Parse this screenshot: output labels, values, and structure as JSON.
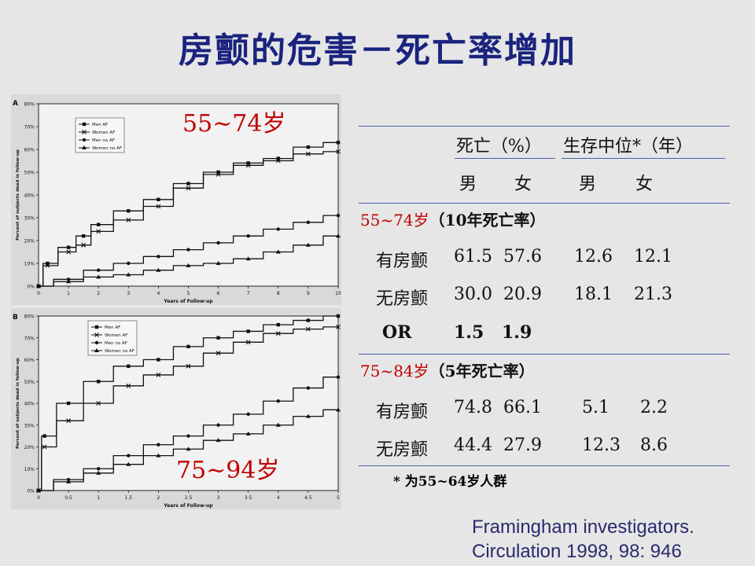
{
  "title": "房颤的危害－死亡率增加",
  "chart_data": [
    {
      "type": "line",
      "panel_label": "A",
      "age_label": "55~74岁",
      "xlabel": "Years of Follow-up",
      "ylabel": "Percent of subjects dead in follow-up",
      "xlim": [
        0,
        10
      ],
      "ylim": [
        0,
        80
      ],
      "x_ticks": [
        "0",
        "1",
        "2",
        "3",
        "4",
        "5",
        "6",
        "7",
        "8",
        "9",
        "10"
      ],
      "y_ticks": [
        "0%",
        "10%",
        "20%",
        "30%",
        "40%",
        "50%",
        "60%",
        "70%",
        "80%"
      ],
      "legend_position": "top-left",
      "series": [
        {
          "name": "Men AF",
          "marker": "square",
          "x": [
            0,
            0.3,
            1,
            1.5,
            2,
            3,
            4,
            5,
            6,
            7,
            8,
            9,
            10
          ],
          "y": [
            0,
            10,
            17,
            22,
            27,
            33,
            38,
            45,
            50,
            54,
            56,
            61,
            63
          ]
        },
        {
          "name": "Women AF",
          "marker": "x",
          "x": [
            0,
            0.3,
            1,
            1.5,
            2,
            3,
            4,
            5,
            6,
            7,
            8,
            9,
            10
          ],
          "y": [
            0,
            9,
            15,
            18,
            24,
            29,
            35,
            43,
            49,
            53,
            55,
            58,
            59
          ]
        },
        {
          "name": "Men no AF",
          "marker": "circle",
          "x": [
            0,
            1,
            2,
            3,
            4,
            5,
            6,
            7,
            8,
            9,
            10
          ],
          "y": [
            0,
            3,
            7,
            10,
            13,
            16,
            19,
            22,
            25,
            28,
            31
          ]
        },
        {
          "name": "Women no AF",
          "marker": "triangle",
          "x": [
            0,
            1,
            2,
            3,
            4,
            5,
            6,
            7,
            8,
            9,
            10
          ],
          "y": [
            0,
            2,
            4,
            5,
            7,
            9,
            10,
            12,
            15,
            18,
            22
          ]
        }
      ]
    },
    {
      "type": "line",
      "panel_label": "B",
      "age_label": "75~94岁",
      "xlabel": "Years of Follow-up",
      "ylabel": "Percent of subjects dead in follow-up",
      "xlim": [
        0,
        5
      ],
      "ylim": [
        0,
        80
      ],
      "x_ticks": [
        "0",
        "0.5",
        "1",
        "1.5",
        "2",
        "2.5",
        "3",
        "3.5",
        "4",
        "4.5",
        "5"
      ],
      "y_ticks": [
        "0%",
        "10%",
        "20%",
        "30%",
        "40%",
        "50%",
        "60%",
        "70%",
        "80%"
      ],
      "legend_position": "top-right",
      "series": [
        {
          "name": "Men AF",
          "marker": "square",
          "x": [
            0,
            0.1,
            0.5,
            1,
            1.5,
            2,
            2.5,
            3,
            3.5,
            4,
            4.5,
            5
          ],
          "y": [
            0,
            25,
            40,
            50,
            57,
            60,
            66,
            70,
            73,
            76,
            78,
            80
          ]
        },
        {
          "name": "Women AF",
          "marker": "x",
          "x": [
            0,
            0.1,
            0.5,
            1,
            1.5,
            2,
            2.5,
            3,
            3.5,
            4,
            4.5,
            5
          ],
          "y": [
            0,
            20,
            32,
            40,
            48,
            53,
            57,
            63,
            68,
            72,
            74,
            75
          ]
        },
        {
          "name": "Men no AF",
          "marker": "circle",
          "x": [
            0,
            0.5,
            1,
            1.5,
            2,
            2.5,
            3,
            3.5,
            4,
            4.5,
            5
          ],
          "y": [
            0,
            5,
            10,
            16,
            21,
            25,
            30,
            35,
            41,
            47,
            52
          ]
        },
        {
          "name": "Women no AF",
          "marker": "triangle",
          "x": [
            0,
            0.5,
            1,
            1.5,
            2,
            2.5,
            3,
            3.5,
            4,
            4.5,
            5
          ],
          "y": [
            0,
            4,
            8,
            12,
            16,
            19,
            23,
            26,
            30,
            34,
            37
          ]
        }
      ]
    }
  ],
  "table": {
    "header1_death": "死亡（%）",
    "header1_survival": "生存中位*（年）",
    "header2": [
      "男",
      "女",
      "男",
      "女"
    ],
    "group1_label": "55~74岁",
    "group1_suffix": "（10年死亡率）",
    "group2_label": "75~84岁",
    "group2_suffix": "（5年死亡率）",
    "rows_group1": [
      {
        "label": "有房颤",
        "values": [
          "61.5",
          "57.6",
          "12.6",
          "12.1"
        ]
      },
      {
        "label": "无房颤",
        "values": [
          "30.0",
          "20.9",
          "18.1",
          "21.3"
        ]
      }
    ],
    "or_row": {
      "label": "OR",
      "values": [
        "1.5",
        "1.9"
      ]
    },
    "rows_group2": [
      {
        "label": "有房颤",
        "values": [
          "74.8",
          "66.1",
          "5.1",
          "2.2"
        ]
      },
      {
        "label": "无房颤",
        "values": [
          "44.4",
          "27.9",
          "12.3",
          "8.6"
        ]
      }
    ],
    "footnote": "* 为55~64岁人群"
  },
  "reference": {
    "line1": "Framingham investigators.",
    "line2": "Circulation 1998, 98: 946"
  },
  "colors": {
    "title": "#1a237e",
    "accent_red": "#c00000",
    "rule": "#4a5fa8"
  }
}
